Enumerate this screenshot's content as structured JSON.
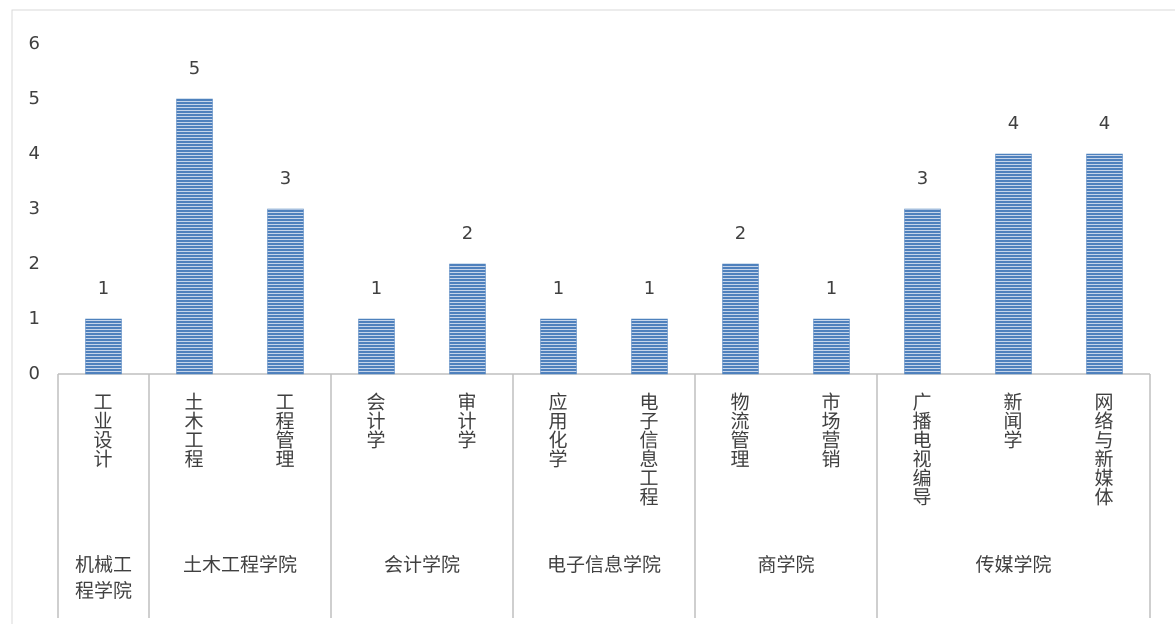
{
  "chart_data": {
    "type": "bar",
    "groups": [
      {
        "name": "机械工程学院",
        "categories": [
          "工业设计"
        ]
      },
      {
        "name": "土木工程学院",
        "categories": [
          "土木工程",
          "工程管理"
        ]
      },
      {
        "name": "会计学院",
        "categories": [
          "会计学",
          "审计学"
        ]
      },
      {
        "name": "电子信息学院",
        "categories": [
          "应用化学",
          "电子信息工程"
        ]
      },
      {
        "name": "商学院",
        "categories": [
          "物流管理",
          "市场营销"
        ]
      },
      {
        "name": "传媒学院",
        "categories": [
          "广播电视编导",
          "新闻学",
          "网络与新媒体"
        ]
      }
    ],
    "values": [
      1,
      5,
      3,
      1,
      2,
      1,
      1,
      2,
      1,
      3,
      4,
      4
    ],
    "color": "#4f81bd",
    "ylim": [
      0,
      6
    ],
    "yticks": [
      0,
      1,
      2,
      3,
      4,
      5,
      6
    ]
  }
}
